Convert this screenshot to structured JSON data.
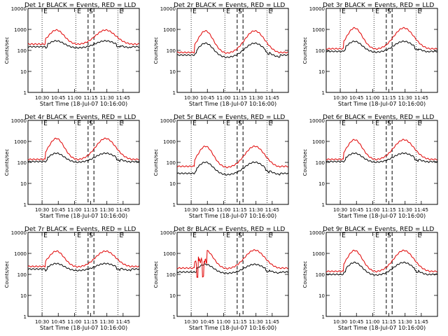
{
  "figure": {
    "ylabel": "Counts/sec",
    "xlabel": "Start Time (18-Jul-07 10:16:00)",
    "y_ticks": [
      "1",
      "10",
      "100",
      "1000",
      "10000"
    ],
    "x_ticks": [
      "10:30",
      "10:45",
      "11:00",
      "11:15",
      "11:30",
      "11:45"
    ],
    "marker_labels": {
      "eclipse": "E",
      "saa": "S"
    },
    "colors": {
      "events": "#000000",
      "lld": "#e00000"
    }
  },
  "chart_data": [
    {
      "type": "line",
      "title": "Det 1r BLACK = Events, RED = LLD",
      "ylim": [
        1,
        10000
      ],
      "log_y": true,
      "series": [
        {
          "name": "Events",
          "color": "#000000",
          "base": 130,
          "amp": 1.3,
          "flat": 150
        },
        {
          "name": "LLD",
          "color": "#e00000",
          "base": 190,
          "amp": 1.7,
          "flat": 200
        }
      ]
    },
    {
      "type": "line",
      "title": "Det 2r BLACK = Events, RED = LLD",
      "ylim": [
        1,
        10000
      ],
      "log_y": true,
      "series": [
        {
          "name": "Events",
          "color": "#000000",
          "base": 45,
          "amp": 1.7,
          "flat": 60
        },
        {
          "name": "LLD",
          "color": "#e00000",
          "base": 70,
          "amp": 2.3,
          "flat": 80
        }
      ]
    },
    {
      "type": "line",
      "title": "Det 3r BLACK = Events, RED = LLD",
      "ylim": [
        1,
        10000
      ],
      "log_y": true,
      "series": [
        {
          "name": "Events",
          "color": "#000000",
          "base": 80,
          "amp": 1.5,
          "flat": 90
        },
        {
          "name": "LLD",
          "color": "#e00000",
          "base": 110,
          "amp": 2.2,
          "flat": 120
        }
      ]
    },
    {
      "type": "line",
      "title": "Det 4r BLACK = Events, RED = LLD",
      "ylim": [
        1,
        10000
      ],
      "log_y": true,
      "series": [
        {
          "name": "Events",
          "color": "#000000",
          "base": 100,
          "amp": 1.4,
          "flat": 110
        },
        {
          "name": "LLD",
          "color": "#e00000",
          "base": 130,
          "amp": 2.2,
          "flat": 140
        }
      ]
    },
    {
      "type": "line",
      "title": "Det 5r BLACK = Events, RED = LLD",
      "ylim": [
        1,
        10000
      ],
      "log_y": true,
      "series": [
        {
          "name": "Events",
          "color": "#000000",
          "base": 25,
          "amp": 1.6,
          "flat": 30
        },
        {
          "name": "LLD",
          "color": "#e00000",
          "base": 55,
          "amp": 2.2,
          "flat": 65
        }
      ]
    },
    {
      "type": "line",
      "title": "Det 6r BLACK = Events, RED = LLD",
      "ylim": [
        1,
        10000
      ],
      "log_y": true,
      "series": [
        {
          "name": "Events",
          "color": "#000000",
          "base": 100,
          "amp": 1.4,
          "flat": 110
        },
        {
          "name": "LLD",
          "color": "#e00000",
          "base": 130,
          "amp": 2.1,
          "flat": 140
        }
      ]
    },
    {
      "type": "line",
      "title": "Det 7r BLACK = Events, RED = LLD",
      "ylim": [
        1,
        10000
      ],
      "log_y": true,
      "series": [
        {
          "name": "Events",
          "color": "#000000",
          "base": 150,
          "amp": 1.3,
          "flat": 180
        },
        {
          "name": "LLD",
          "color": "#e00000",
          "base": 220,
          "amp": 1.8,
          "flat": 240
        }
      ]
    },
    {
      "type": "line",
      "title": "Det 8r BLACK = Events, RED = LLD",
      "ylim": [
        1,
        10000
      ],
      "log_y": true,
      "series": [
        {
          "name": "Events",
          "color": "#000000",
          "base": 110,
          "amp": 1.4,
          "flat": 130
        },
        {
          "name": "LLD",
          "color": "#e00000",
          "base": 180,
          "amp": 2.0,
          "flat": 200
        }
      ]
    },
    {
      "type": "line",
      "title": "Det 9r BLACK = Events, RED = LLD",
      "ylim": [
        1,
        10000
      ],
      "log_y": true,
      "series": [
        {
          "name": "Events",
          "color": "#000000",
          "base": 90,
          "amp": 1.6,
          "flat": 100
        },
        {
          "name": "LLD",
          "color": "#e00000",
          "base": 130,
          "amp": 2.2,
          "flat": 140
        }
      ]
    }
  ]
}
